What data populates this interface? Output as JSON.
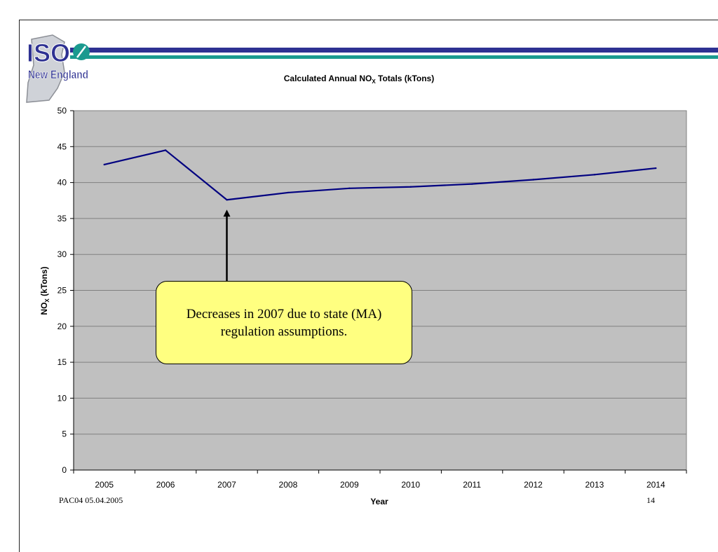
{
  "logo": {
    "text_top": "ISO",
    "text_bottom": "New England"
  },
  "chart_data": {
    "type": "line",
    "title": "Calculated Annual NOX Totals (kTons)",
    "title_parts": {
      "before": "Calculated Annual NO",
      "sub": "X",
      "after": " Totals (kTons)"
    },
    "xlabel": "Year",
    "ylabel_parts": {
      "before": "NO",
      "sub": "X",
      "after": " (kTons)"
    },
    "categories": [
      "2005",
      "2006",
      "2007",
      "2008",
      "2009",
      "2010",
      "2011",
      "2012",
      "2013",
      "2014"
    ],
    "values": [
      42.5,
      44.5,
      37.6,
      38.6,
      39.2,
      39.4,
      39.8,
      40.4,
      41.1,
      42.0
    ],
    "ylim": [
      0,
      50
    ],
    "yticks": [
      0,
      5,
      10,
      15,
      20,
      25,
      30,
      35,
      40,
      45,
      50
    ],
    "grid": true,
    "colors": {
      "plot_bg": "#c0c0c0",
      "line": "#000080",
      "grid": "#808080"
    },
    "annotation": {
      "category": "2007",
      "text": "Decreases in 2007 due to state (MA) regulation assumptions."
    }
  },
  "footer": {
    "left": "PAC04 05.04.2005",
    "page": "14"
  }
}
